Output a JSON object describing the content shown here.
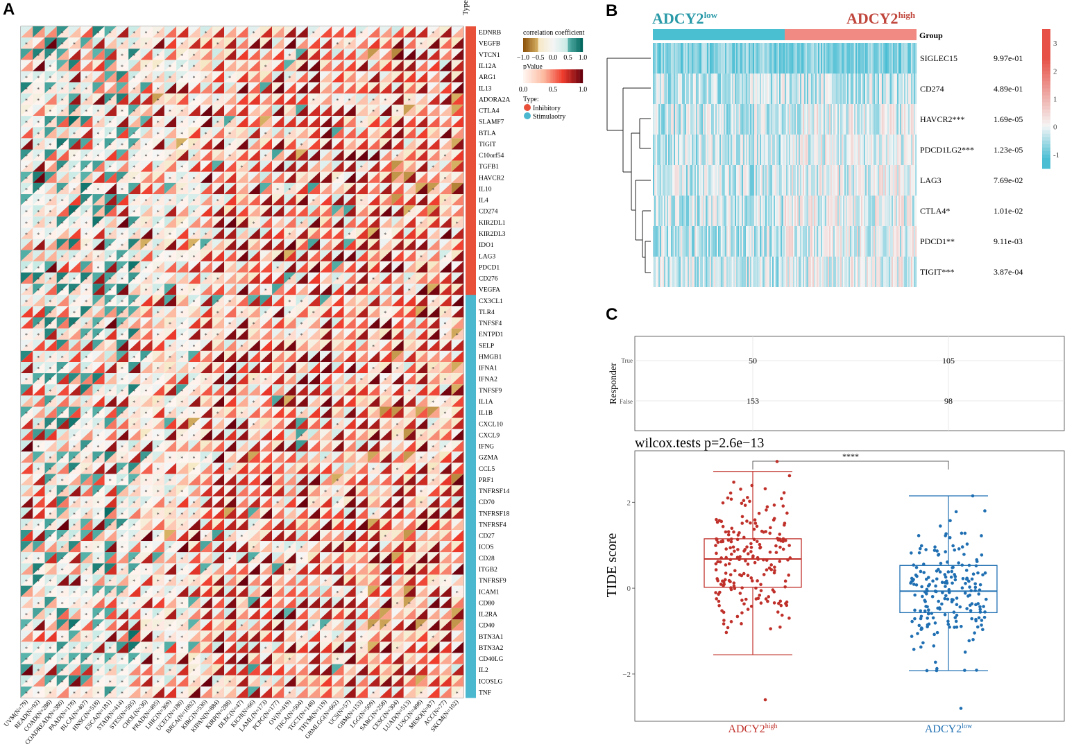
{
  "panels": {
    "a": "A",
    "b": "B",
    "c": "C"
  },
  "colors": {
    "inhibitory": "#e8503a",
    "stimulatory": "#4bb8d0",
    "group_low": "#49bfd1",
    "group_high": "#f08a83",
    "box_high": "#c0302a",
    "box_low": "#1f6fb2",
    "label_low": "#2a9aa8",
    "label_high": "#c0463c"
  },
  "panel_a": {
    "type_header": "Type",
    "legend": {
      "corr_title": "correlation coefficient",
      "corr_ticks": [
        "−1.0",
        "−0.5",
        "0.0",
        "0.5",
        "1.0"
      ],
      "pvalue_title": "pValue",
      "pvalue_ticks": [
        "0.0",
        "0.5",
        "1.0"
      ],
      "type_title": "Type:",
      "type_items": [
        "Inhibitory",
        "Stimulaotry"
      ]
    },
    "genes": [
      "EDNRB",
      "VEGFB",
      "VTCN1",
      "IL12A",
      "ARG1",
      "IL13",
      "ADORA2A",
      "CTLA4",
      "SLAMF7",
      "BTLA",
      "TIGIT",
      "C10orf54",
      "TGFB1",
      "HAVCR2",
      "IL10",
      "IL4",
      "CD274",
      "KIR2DL1",
      "KIR2DL3",
      "IDO1",
      "LAG3",
      "PDCD1",
      "CD276",
      "VEGFA",
      "CX3CL1",
      "TLR4",
      "TNFSF4",
      "ENTPD1",
      "SELP",
      "HMGB1",
      "IFNA1",
      "IFNA2",
      "TNFSF9",
      "IL1A",
      "IL1B",
      "CXCL10",
      "CXCL9",
      "IFNG",
      "GZMA",
      "CCL5",
      "PRF1",
      "TNFRSF14",
      "CD70",
      "TNFRSF18",
      "TNFRSF4",
      "CD27",
      "ICOS",
      "CD28",
      "ITGB2",
      "TNFRSF9",
      "ICAM1",
      "CD80",
      "IL2RA",
      "CD40",
      "BTN3A1",
      "BTN3A2",
      "CD40LG",
      "IL2",
      "ICOSLG",
      "TNF"
    ],
    "gene_types": [
      "I",
      "I",
      "I",
      "I",
      "I",
      "I",
      "I",
      "I",
      "I",
      "I",
      "I",
      "I",
      "I",
      "I",
      "I",
      "I",
      "I",
      "I",
      "I",
      "I",
      "I",
      "I",
      "I",
      "I",
      "S",
      "S",
      "S",
      "S",
      "S",
      "S",
      "S",
      "S",
      "S",
      "S",
      "S",
      "S",
      "S",
      "S",
      "S",
      "S",
      "S",
      "S",
      "S",
      "S",
      "S",
      "S",
      "S",
      "S",
      "S",
      "S",
      "S",
      "S",
      "S",
      "S",
      "S",
      "S",
      "S",
      "S",
      "S",
      "S"
    ],
    "cancers": [
      "UVM(N=79)",
      "READ(N=92)",
      "COAD(N=288)",
      "COADREAD(N=380)",
      "PAAD(N=178)",
      "BLCA(N=407)",
      "HNSC(N=518)",
      "ESCA(N=181)",
      "STAD(N=414)",
      "STES(N=595)",
      "CHOL(N=36)",
      "PRAD(N=495)",
      "LIHC(N=369)",
      "UCEC(N=180)",
      "BRCA(N=1092)",
      "KIRC(N=530)",
      "KIPAN(N=884)",
      "KIRP(N=288)",
      "DLBC(N=47)",
      "KICH(N=66)",
      "LAML(N=173)",
      "PCPG(N=177)",
      "OV(N=419)",
      "THCA(N=504)",
      "TGCT(N=148)",
      "THYM(N=119)",
      "GBMLGG(N=662)",
      "UCS(N=57)",
      "GBM(N=153)",
      "LGG(N=509)",
      "SARC(N=258)",
      "CESC(N=304)",
      "LUAD(N=513)",
      "LUSC(N=498)",
      "MESO(N=87)",
      "ACC(N=77)",
      "SKCM(N=102)"
    ],
    "star": "*"
  },
  "panel_b": {
    "label_low_base": "ADCY2",
    "label_low_sup": "low",
    "label_high_base": "ADCY2",
    "label_high_sup": "high",
    "group_label": "Group",
    "genes": [
      {
        "name": "SIGLEC15",
        "p": "9.97e-01"
      },
      {
        "name": "CD274",
        "p": "4.89e-01"
      },
      {
        "name": "HAVCR2***",
        "p": "1.69e-05"
      },
      {
        "name": "PDCD1LG2***",
        "p": "1.23e-05"
      },
      {
        "name": "LAG3",
        "p": "7.69e-02"
      },
      {
        "name": "CTLA4*",
        "p": "1.01e-02"
      },
      {
        "name": "PDCD1**",
        "p": "9.11e-03"
      },
      {
        "name": "TIGIT***",
        "p": "3.87e-04"
      }
    ],
    "colorbar_ticks": [
      "3",
      "2",
      "1",
      "0",
      "-1"
    ]
  },
  "chart_data": [
    {
      "type": "heatmap",
      "title": "",
      "description_rows": "60 immune checkpoint genes",
      "description_cols": "37 cancer types",
      "corr_range": [
        -1.0,
        1.0
      ],
      "pvalue_range": [
        0.0,
        1.0
      ]
    },
    {
      "type": "heatmap",
      "rows": [
        "SIGLEC15",
        "CD274",
        "HAVCR2***",
        "PDCD1LG2***",
        "LAG3",
        "CTLA4*",
        "PDCD1**",
        "TIGIT***"
      ],
      "p_values": [
        "9.97e-01",
        "4.89e-01",
        "1.69e-05",
        "1.23e-05",
        "7.69e-02",
        "1.01e-02",
        "9.11e-03",
        "3.87e-04"
      ],
      "groups": [
        "ADCY2low",
        "ADCY2high"
      ],
      "color_range": [
        -1.5,
        3.5
      ]
    },
    {
      "type": "table",
      "ylabel": "Responder",
      "rows": [
        "True",
        "False"
      ],
      "columns": [
        "ADCY2high",
        "ADCY2low"
      ],
      "values": [
        [
          "50",
          "105"
        ],
        [
          "153",
          "98"
        ]
      ]
    },
    {
      "type": "box",
      "title": "wilcox.tests p=2.6e−13",
      "significance": "****",
      "ylabel": "TIDE score",
      "categories": [
        "ADCY2high",
        "ADCY2low"
      ],
      "x_label_base": "ADCY2",
      "x_label_sups": [
        "high",
        "low"
      ],
      "yticks": [
        "2",
        "0",
        "−2"
      ],
      "ytick_values": [
        2,
        0,
        -2
      ],
      "ylim": [
        -3.1,
        3.2
      ],
      "stats": [
        {
          "q1": 0.02,
          "median": 0.68,
          "q3": 1.15,
          "whisker_low": -1.55,
          "whisker_high": 2.72,
          "min": -2.6,
          "max": 2.95,
          "n": 203
        },
        {
          "q1": -0.57,
          "median": -0.07,
          "q3": 0.53,
          "whisker_low": -1.92,
          "whisker_high": 2.15,
          "min": -2.8,
          "max": 2.15,
          "n": 203
        }
      ]
    }
  ]
}
